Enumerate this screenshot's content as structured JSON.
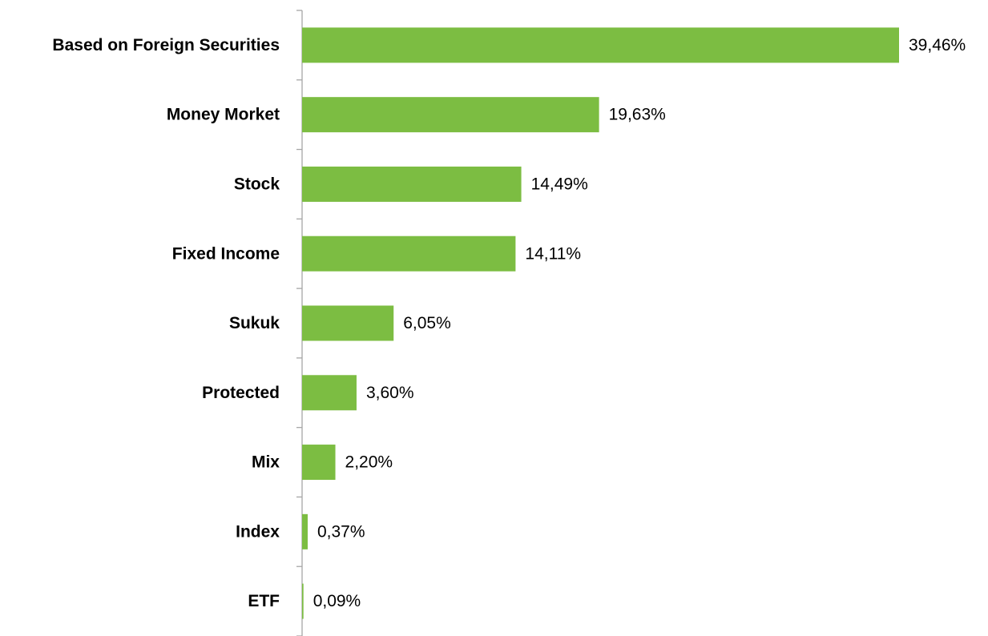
{
  "chart_data": {
    "type": "bar",
    "orientation": "horizontal",
    "categories": [
      "Based on Foreign Securities",
      "Money Morket",
      "Stock",
      "Fixed Income",
      "Sukuk",
      "Protected",
      "Mix",
      "Index",
      "ETF"
    ],
    "values": [
      39.46,
      19.63,
      14.49,
      14.11,
      6.05,
      3.6,
      2.2,
      0.37,
      0.09
    ],
    "value_labels": [
      "39,46%",
      "19,63%",
      "14,49%",
      "14,11%",
      "6,05%",
      "3,60%",
      "2,20%",
      "0,37%",
      "0,09%"
    ],
    "color": "#7cbd42"
  }
}
